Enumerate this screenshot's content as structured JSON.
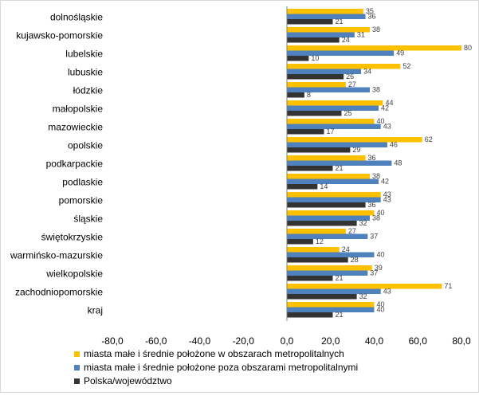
{
  "chart_data": {
    "type": "bar",
    "orientation": "horizontal",
    "categories": [
      "dolnośląskie",
      "kujawsko-pomorskie",
      "lubelskie",
      "lubuskie",
      "łódzkie",
      "małopolskie",
      "mazowieckie",
      "opolskie",
      "podkarpackie",
      "podlaskie",
      "pomorskie",
      "śląskie",
      "świętokrzyskie",
      "warmińsko-mazurskie",
      "wielkopolskie",
      "zachodniopomorskie",
      "kraj"
    ],
    "series": [
      {
        "name": "miasta małe i średnie położone w obszarach metropolitalnych",
        "color": "#FFC000",
        "values": [
          35,
          38,
          80,
          52,
          27,
          44,
          40,
          62,
          36,
          38,
          43,
          40,
          27,
          24,
          39,
          71,
          40
        ]
      },
      {
        "name": "miasta małe i średnie położone poza obszarami metropolitalnymi",
        "color": "#4F81BD",
        "values": [
          36,
          31,
          49,
          34,
          38,
          42,
          43,
          46,
          48,
          42,
          43,
          38,
          37,
          40,
          37,
          43,
          40
        ]
      },
      {
        "name": "Polska/województwo",
        "color": "#333333",
        "values": [
          21,
          24,
          10,
          26,
          8,
          25,
          17,
          29,
          21,
          14,
          36,
          32,
          12,
          28,
          21,
          32,
          21
        ]
      }
    ],
    "xlim": [
      -80,
      80
    ],
    "x_ticks": [
      -80,
      -60,
      -40,
      -20,
      0,
      20,
      40,
      60,
      80
    ],
    "x_tick_labels": [
      "-80,0",
      "-60,0",
      "-40,0",
      "-20,0",
      "0,0",
      "20,0",
      "40,0",
      "60,0",
      "80,0"
    ],
    "grid": false,
    "legend_position": "bottom"
  }
}
